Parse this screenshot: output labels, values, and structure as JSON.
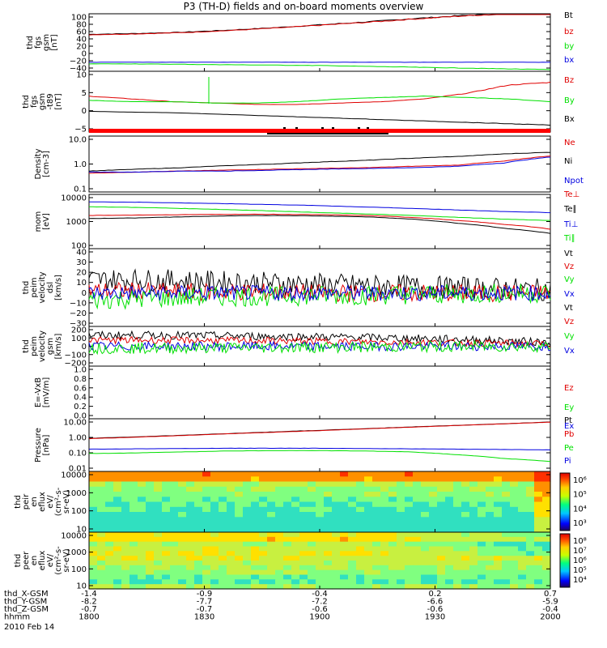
{
  "title": "P3 (TH-D) fields and on-board moments overview",
  "colors": {
    "black": "#000000",
    "red": "#e00000",
    "green": "#00e000",
    "blue": "#0000e0"
  },
  "footer": {
    "rows": [
      {
        "label": "thd_X-GSM",
        "values": [
          "-1.4",
          "-0.9",
          "-0.4",
          "0.2",
          "0.7"
        ]
      },
      {
        "label": "thd_Y-GSM",
        "values": [
          "-8.2",
          "-7.7",
          "-7.2",
          "-6.6",
          "-5.9"
        ]
      },
      {
        "label": "thd_Z-GSM",
        "values": [
          "-0.7",
          "-0.7",
          "-0.6",
          "-0.6",
          "-0.4"
        ]
      },
      {
        "label": "hhmm",
        "values": [
          "1800",
          "1830",
          "1900",
          "1930",
          "2000"
        ]
      }
    ],
    "date": "2010 Feb 14"
  },
  "colorbars": [
    {
      "ticks": [
        "10⁶",
        "10⁵",
        "10⁴",
        "10³"
      ]
    },
    {
      "ticks": [
        "10⁸",
        "10⁷",
        "10⁶",
        "10⁵",
        "10⁴"
      ]
    }
  ],
  "chart_data": [
    {
      "type": "line",
      "ylabel": [
        "thd",
        "fgs",
        "gsm",
        "[nT]"
      ],
      "ylim": [
        -40,
        100
      ],
      "ticks": [
        "100",
        "80",
        "60",
        "40",
        "20",
        "0",
        "−20",
        "−40"
      ],
      "legend": [
        "Bt",
        "bz",
        "by",
        "bx"
      ],
      "series": [
        {
          "name": "Bt",
          "color": "black",
          "values": [
            50,
            52,
            55,
            60,
            66,
            73,
            80,
            88,
            95,
            100,
            100
          ]
        },
        {
          "name": "bz",
          "color": "red",
          "values": [
            49,
            51,
            54,
            59,
            65,
            72,
            79,
            87,
            94,
            100,
            100
          ]
        },
        {
          "name": "by",
          "color": "green",
          "values": [
            -22,
            -22,
            -23,
            -24,
            -25,
            -26,
            -28,
            -30,
            -32,
            -34,
            -36
          ]
        },
        {
          "name": "bx",
          "color": "blue",
          "values": [
            -18,
            -18,
            -18,
            -18,
            -18,
            -18,
            -18,
            -18,
            -18,
            -18,
            -18
          ]
        }
      ]
    },
    {
      "type": "line",
      "ylabel": [
        "thd",
        "fgs",
        "gsm",
        "-t89",
        "[nT]"
      ],
      "ylim": [
        -8,
        14
      ],
      "ticks": [
        "10",
        "5",
        "0",
        "−5"
      ],
      "legend": [
        "Bz",
        "By",
        "Bx"
      ],
      "series": [
        {
          "name": "Bz",
          "color": "red",
          "values": [
            5,
            4,
            3,
            2.5,
            2,
            2,
            2.5,
            3,
            4,
            6,
            9,
            10
          ]
        },
        {
          "name": "By",
          "color": "green",
          "values": [
            3.5,
            3,
            3,
            2.5,
            2.5,
            3,
            4,
            4.5,
            5,
            4.5,
            4,
            3
          ]
        },
        {
          "name": "Bx",
          "color": "black",
          "values": [
            -0.5,
            -0.8,
            -1,
            -1.5,
            -2,
            -2.5,
            -3,
            -3.5,
            -4,
            -4.5,
            -5,
            -5.5
          ]
        }
      ]
    },
    {
      "type": "line",
      "ylabel": [
        "Density",
        "[cm-3]"
      ],
      "ylim": [
        0.1,
        12
      ],
      "log": true,
      "ticks": [
        "10.0",
        "1.0",
        "0.1"
      ],
      "legend": [
        "Ne",
        "Ni",
        "Npot"
      ],
      "series": [
        {
          "name": "Ni",
          "color": "black",
          "values": [
            0.6,
            0.7,
            0.8,
            0.95,
            1.1,
            1.3,
            1.5,
            1.8,
            2.1,
            2.6,
            3.0
          ]
        },
        {
          "name": "Ne",
          "color": "red",
          "values": [
            0.5,
            0.55,
            0.6,
            0.65,
            0.7,
            0.75,
            0.8,
            0.9,
            1.0,
            1.4,
            2.2
          ]
        },
        {
          "name": "Npot",
          "color": "blue",
          "values": [
            0.55,
            0.55,
            0.6,
            0.6,
            0.65,
            0.7,
            0.75,
            0.8,
            0.9,
            1.2,
            2.0
          ]
        }
      ]
    },
    {
      "type": "line",
      "ylabel": [
        "mom",
        "[eV]"
      ],
      "ylim": [
        20,
        12000
      ],
      "log": true,
      "ticks": [
        "10000",
        "1000",
        "100"
      ],
      "legend": [
        "Te⊥",
        "Te∥",
        "Ti⊥",
        "Ti∥"
      ],
      "series": [
        {
          "name": "Ti⊥",
          "color": "blue",
          "values": [
            5000,
            4800,
            4400,
            4000,
            3600,
            3200,
            2700,
            2300,
            1900,
            1600,
            1400
          ]
        },
        {
          "name": "Ti∥",
          "color": "green",
          "values": [
            2800,
            2600,
            2300,
            2000,
            1700,
            1400,
            1200,
            1000,
            800,
            650,
            550
          ]
        },
        {
          "name": "Te⊥",
          "color": "red",
          "values": [
            1000,
            1050,
            1100,
            1150,
            1150,
            1100,
            1000,
            800,
            550,
            350,
            200
          ]
        },
        {
          "name": "Te∥",
          "color": "black",
          "values": [
            700,
            750,
            850,
            950,
            1000,
            950,
            850,
            650,
            400,
            220,
            120
          ]
        }
      ]
    },
    {
      "type": "line",
      "ylabel": [
        "thd",
        "peim",
        "velocity",
        "dsl",
        "[km/s]"
      ],
      "ylim": [
        -30,
        40
      ],
      "ticks": [
        "40",
        "30",
        "20",
        "10",
        "0",
        "−10",
        "−20",
        "−30"
      ],
      "legend": [
        "Vt",
        "Vz",
        "Vy",
        "Vx"
      ],
      "series": [
        {
          "name": "Vt",
          "color": "black",
          "values": [
            12,
            12,
            11,
            10,
            9,
            8,
            7,
            6,
            5,
            4,
            3
          ],
          "noise": 10
        },
        {
          "name": "Vz",
          "color": "red",
          "values": [
            2,
            2,
            1,
            1,
            1,
            0,
            0,
            0,
            0,
            0,
            0
          ],
          "noise": 8
        },
        {
          "name": "Vy",
          "color": "green",
          "values": [
            -6,
            -5,
            -4,
            -3,
            -3,
            -2,
            -2,
            -1,
            -1,
            0,
            0
          ],
          "noise": 9
        },
        {
          "name": "Vx",
          "color": "blue",
          "values": [
            0,
            0,
            0,
            0,
            0,
            0,
            0,
            0,
            0,
            0,
            0
          ],
          "noise": 7
        }
      ]
    },
    {
      "type": "line",
      "ylabel": [
        "thd",
        "peim",
        "velocity",
        "gsm",
        "[km/s]"
      ],
      "ylim": [
        -200,
        200
      ],
      "ticks": [
        "200",
        "100",
        "0",
        "−100",
        "−200"
      ],
      "legend": [
        "Vt",
        "Vz",
        "Vy",
        "Vx"
      ],
      "series": [
        {
          "name": "Vt",
          "color": "black",
          "values": [
            110,
            112,
            110,
            105,
            100,
            95,
            90,
            80,
            70,
            55,
            40
          ],
          "noise": 40
        },
        {
          "name": "Vz",
          "color": "red",
          "values": [
            60,
            62,
            60,
            58,
            55,
            50,
            45,
            40,
            35,
            30,
            25
          ],
          "noise": 35
        },
        {
          "name": "Vx",
          "color": "blue",
          "values": [
            0,
            0,
            0,
            0,
            0,
            0,
            0,
            0,
            0,
            0,
            0
          ],
          "noise": 45
        },
        {
          "name": "Vy",
          "color": "green",
          "values": [
            -20,
            -20,
            -18,
            -15,
            -12,
            -10,
            -8,
            -5,
            -3,
            -2,
            -1
          ],
          "noise": 55
        }
      ]
    },
    {
      "type": "line",
      "ylabel": [
        "E=-VxB",
        "[mV/m]"
      ],
      "ylim": [
        0,
        1
      ],
      "ticks": [
        "1.0",
        "0.8",
        "0.6",
        "0.4",
        "0.2",
        "0.0"
      ],
      "legend": [
        "Ez",
        "Ey",
        "Ex"
      ],
      "series": []
    },
    {
      "type": "line",
      "ylabel": [
        "Pressure",
        "[nPa]"
      ],
      "ylim": [
        0.01,
        15
      ],
      "log": true,
      "ticks": [
        "10.00",
        "1.00",
        "0.10",
        "0.01"
      ],
      "legend": [
        "Pt",
        "Pb",
        "Pe",
        "Pi"
      ],
      "series": [
        {
          "name": "Pt",
          "color": "black",
          "values": [
            1.0,
            1.2,
            1.5,
            1.9,
            2.4,
            3.0,
            3.8,
            4.8,
            6.0,
            7.5,
            9.5
          ]
        },
        {
          "name": "Pb",
          "color": "red",
          "values": [
            0.95,
            1.15,
            1.45,
            1.85,
            2.3,
            2.9,
            3.7,
            4.7,
            5.9,
            7.4,
            9.4
          ]
        },
        {
          "name": "Pi",
          "color": "blue",
          "values": [
            0.22,
            0.23,
            0.24,
            0.25,
            0.25,
            0.25,
            0.24,
            0.23,
            0.22,
            0.21,
            0.2
          ]
        },
        {
          "name": "Pe",
          "color": "green",
          "values": [
            0.12,
            0.13,
            0.15,
            0.17,
            0.18,
            0.18,
            0.17,
            0.15,
            0.1,
            0.06,
            0.04
          ]
        }
      ]
    },
    {
      "type": "heatmap",
      "ylabel": [
        "thd",
        "peir",
        "en",
        "eflux",
        "eV/",
        "(cm²-s-",
        "sr-eV)"
      ],
      "ylim": [
        10,
        15000
      ],
      "log": true,
      "ticks": [
        "10000",
        "1000",
        "100",
        "10"
      ]
    },
    {
      "type": "heatmap",
      "ylabel": [
        "thd",
        "peer",
        "en",
        "eflux",
        "eV/",
        "(cm²-s-",
        "sr-eV)"
      ],
      "ylim": [
        7,
        15000
      ],
      "log": true,
      "ticks": [
        "10000",
        "1000",
        "100",
        "10"
      ]
    }
  ]
}
